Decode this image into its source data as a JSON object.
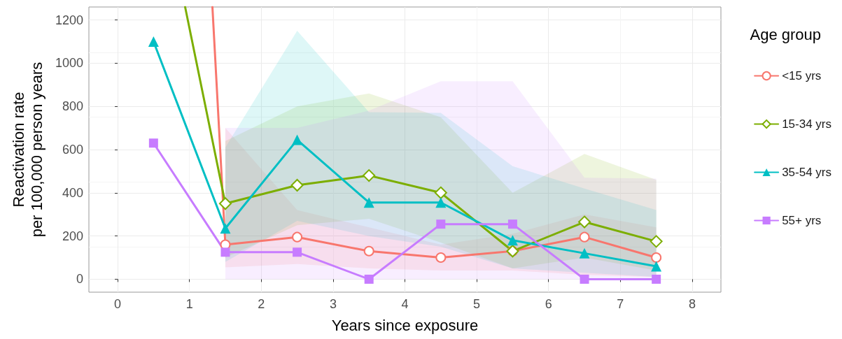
{
  "chart_data": {
    "type": "line",
    "xlabel": "Years since exposure",
    "ylabel": "Reactivation rate\nper 100,000 person years",
    "legend_title": "Age group",
    "xlim": [
      -0.4,
      8.4
    ],
    "xticks": [
      0,
      1,
      2,
      3,
      4,
      5,
      6,
      7,
      8
    ],
    "ylim": [
      -60,
      1260
    ],
    "yticks": [
      0,
      200,
      400,
      600,
      800,
      1000,
      1200
    ],
    "grid": true,
    "legend": "right",
    "line_style": "solid",
    "series": [
      {
        "name": "<15 yrs",
        "color": "#f8766d",
        "marker": "circle",
        "x": [
          1.32,
          1.5,
          2.5,
          3.5,
          4.5,
          5.5,
          6.5,
          7.5
        ],
        "values": [
          1260,
          160,
          195,
          130,
          100,
          130,
          195,
          100
        ],
        "lower": [
          null,
          55,
          70,
          50,
          40,
          40,
          20,
          10
        ],
        "upper": [
          null,
          700,
          320,
          240,
          160,
          210,
          300,
          240
        ]
      },
      {
        "name": "15-34 yrs",
        "color": "#7cae00",
        "marker": "diamond",
        "x": [
          0.94,
          1.5,
          2.5,
          3.5,
          4.5,
          5.5,
          6.5,
          7.5
        ],
        "values": [
          1260,
          350,
          435,
          480,
          400,
          130,
          265,
          175
        ],
        "lower": [
          null,
          100,
          250,
          280,
          170,
          50,
          100,
          40
        ],
        "upper": [
          null,
          640,
          800,
          860,
          750,
          400,
          580,
          460
        ]
      },
      {
        "name": "35-54 yrs",
        "color": "#00bfc4",
        "marker": "triangle",
        "x": [
          0.5,
          1.5,
          2.5,
          3.5,
          4.5,
          5.5,
          6.5,
          7.5
        ],
        "values": [
          1100,
          235,
          645,
          355,
          355,
          180,
          120,
          60
        ],
        "lower": [
          null,
          80,
          270,
          200,
          150,
          50,
          30,
          10
        ],
        "upper": [
          null,
          610,
          1150,
          773,
          770,
          523,
          420,
          320
        ]
      },
      {
        "name": "55+ yrs",
        "color": "#c77cff",
        "marker": "square",
        "x": [
          0.5,
          1.5,
          2.5,
          3.5,
          4.5,
          5.5,
          6.5,
          7.5
        ],
        "values": [
          630,
          125,
          125,
          0,
          255,
          255,
          0,
          0
        ],
        "lower": [
          null,
          0,
          0,
          0,
          0,
          0,
          0,
          0
        ],
        "upper": [
          null,
          700,
          700,
          780,
          916,
          916,
          470,
          466
        ]
      }
    ]
  }
}
